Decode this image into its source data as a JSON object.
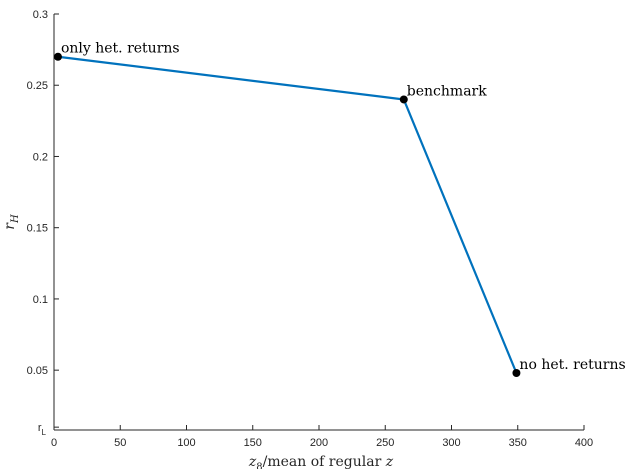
{
  "chart_data": {
    "type": "line",
    "title": "",
    "xlabel": "z_8/mean of regular z",
    "ylabel": "r_H",
    "xlim": [
      0,
      400
    ],
    "ylim": [
      0.008,
      0.3
    ],
    "x_ticks": [
      0,
      50,
      100,
      150,
      200,
      250,
      300,
      350,
      400
    ],
    "x_tick_labels": [
      "0",
      "50",
      "100",
      "150",
      "200",
      "250",
      "300",
      "350",
      "400"
    ],
    "y_ticks": [
      0.05,
      0.1,
      0.15,
      0.2,
      0.25,
      0.3
    ],
    "y_tick_labels": [
      "0.05",
      "0.1",
      "0.15",
      "0.2",
      "0.25",
      "0.3"
    ],
    "y_extra_tick": {
      "value": 0.01,
      "label": "r_L"
    },
    "grid": false,
    "series": [
      {
        "x": [
          3,
          264,
          349
        ],
        "y": [
          0.27,
          0.24,
          0.048
        ],
        "color": "#0072BD",
        "marker_color": "#000000"
      }
    ],
    "annotations": [
      {
        "text": "only het. returns",
        "x": 3,
        "y": 0.27
      },
      {
        "text": "benchmark",
        "x": 264,
        "y": 0.24
      },
      {
        "text": "no het. returns",
        "x": 349,
        "y": 0.048
      }
    ]
  }
}
